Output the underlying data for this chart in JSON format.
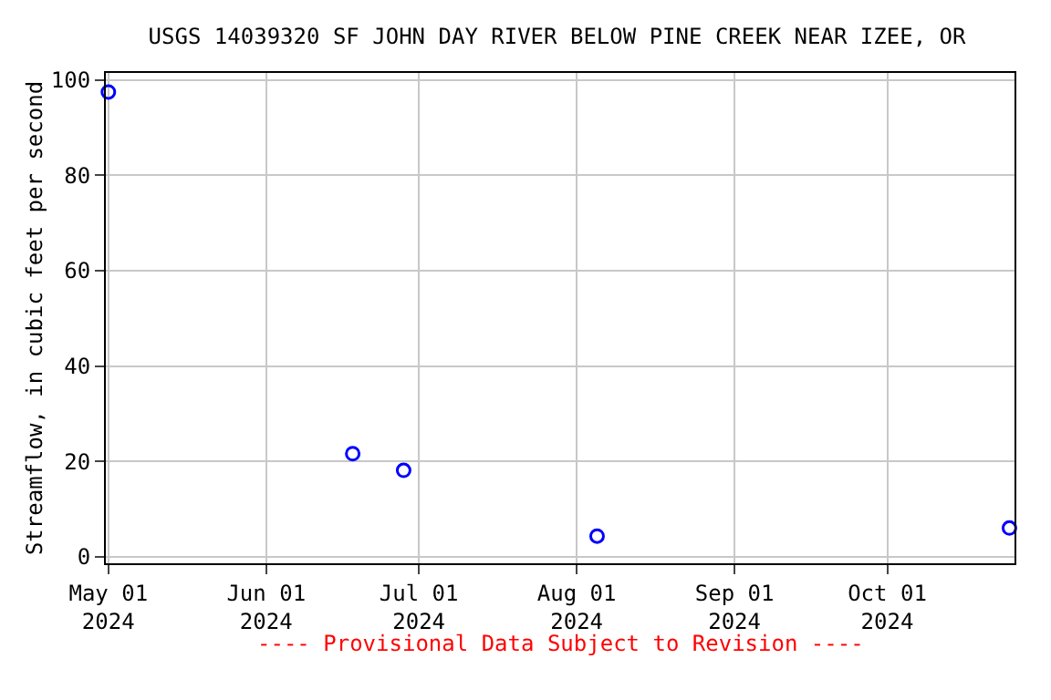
{
  "chart_data": {
    "type": "scatter",
    "title": "USGS 14039320 SF JOHN DAY RIVER BELOW PINE CREEK NEAR IZEE, OR",
    "ylabel": "Streamflow, in cubic feet per second",
    "x": [
      "2024-05-01",
      "2024-06-18",
      "2024-06-28",
      "2024-08-05",
      "2024-10-25"
    ],
    "series": [
      {
        "color": "#0000ff",
        "values": [
          97.5,
          21.6,
          18.1,
          4.3,
          6.0
        ]
      }
    ],
    "marker": "circle",
    "grid": true,
    "legend": false,
    "xlim": [
      "2024-04-30T12:00",
      "2024-10-26"
    ],
    "xticks": [
      {
        "value": "2024-05-01",
        "label": "May 01\n2024"
      },
      {
        "value": "2024-06-01",
        "label": "Jun 01\n2024"
      },
      {
        "value": "2024-07-01",
        "label": "Jul 01\n2024"
      },
      {
        "value": "2024-08-01",
        "label": "Aug 01\n2024"
      },
      {
        "value": "2024-09-01",
        "label": "Sep 01\n2024"
      },
      {
        "value": "2024-10-01",
        "label": "Oct 01\n2024"
      }
    ],
    "ylim": [
      -1.4,
      101.5
    ],
    "yticks": [
      0,
      20,
      40,
      60,
      80,
      100
    ],
    "annotations": [
      "---- Provisional Data Subject to Revision ----"
    ]
  }
}
